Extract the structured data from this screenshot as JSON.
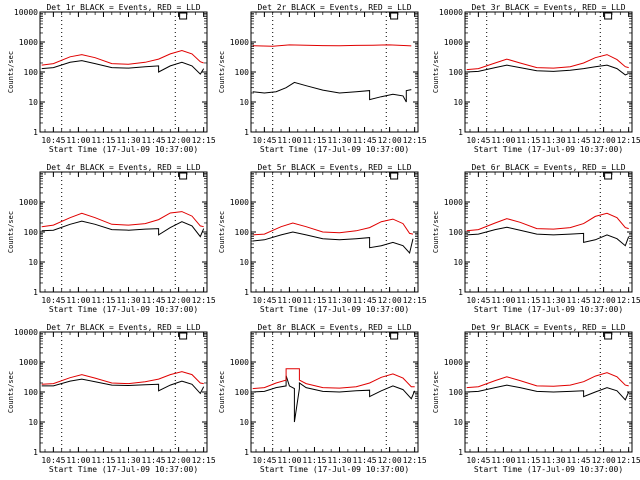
{
  "window": {
    "background": "#ffffff"
  },
  "colors": {
    "events": "#000000",
    "lld": "#e00000",
    "axis": "#000000"
  },
  "chart_data": {
    "type": "line",
    "layout": "3x3 grid",
    "scale": "log-y",
    "ylim": [
      1,
      10000
    ],
    "xlim": [
      "10:37",
      "12:17"
    ],
    "xticks": [
      "10:45",
      "11:00",
      "11:15",
      "11:30",
      "11:45",
      "12:00",
      "12:15"
    ],
    "ylabel": "Counts/sec",
    "xlabel": "Start Time (17-Jul-09 10:37:00)",
    "series_labels": {
      "events": "BLACK = Events",
      "lld": "RED = LLD"
    },
    "markers": {
      "dotted_lines": [
        "10:50",
        "11:58"
      ],
      "box_marker": "12:03"
    },
    "panels": [
      {
        "title": "Det 1r BLACK = Events, RED = LLD",
        "yticks": [
          "1",
          "10",
          "100",
          "1000",
          "10000"
        ],
        "series": [
          {
            "key": "events",
            "x": [
              "10:38",
              "10:45",
              "10:55",
              "11:02",
              "11:10",
              "11:20",
              "11:30",
              "11:40",
              "11:48",
              "11:48",
              "11:55",
              "12:02",
              "12:08",
              "12:13",
              "12:15"
            ],
            "y": [
              130,
              140,
              210,
              240,
              190,
              140,
              135,
              150,
              160,
              100,
              160,
              210,
              160,
              85,
              130
            ]
          },
          {
            "key": "lld",
            "x": [
              "10:38",
              "10:45",
              "10:55",
              "11:02",
              "11:10",
              "11:20",
              "11:30",
              "11:40",
              "11:48",
              "11:55",
              "12:02",
              "12:08",
              "12:13",
              "12:15"
            ],
            "y": [
              170,
              190,
              320,
              380,
              300,
              190,
              180,
              210,
              270,
              400,
              520,
              400,
              220,
              200
            ]
          }
        ]
      },
      {
        "title": "Det 2r BLACK = Events, RED = LLD",
        "yticks": [
          "1",
          "10",
          "100",
          "1000"
        ],
        "series": [
          {
            "key": "events",
            "x": [
              "10:38",
              "10:45",
              "10:52",
              "10:58",
              "11:03",
              "11:10",
              "11:20",
              "11:30",
              "11:40",
              "11:48",
              "11:48",
              "11:55",
              "12:02",
              "12:08",
              "12:10",
              "12:10",
              "12:13"
            ],
            "y": [
              22,
              20,
              22,
              30,
              45,
              35,
              25,
              20,
              22,
              24,
              12,
              15,
              18,
              16,
              10,
              24,
              26
            ]
          },
          {
            "key": "lld",
            "x": [
              "10:38",
              "10:50",
              "11:00",
              "11:10",
              "11:20",
              "11:30",
              "11:40",
              "11:50",
              "12:00",
              "12:10",
              "12:13"
            ],
            "y": [
              750,
              720,
              800,
              780,
              760,
              750,
              770,
              780,
              800,
              760,
              740
            ]
          }
        ]
      },
      {
        "title": "Det 3r BLACK = Events, RED = LLD",
        "yticks": [
          "1",
          "10",
          "100",
          "1000",
          "10000"
        ],
        "series": [
          {
            "key": "events",
            "x": [
              "10:38",
              "10:45",
              "10:55",
              "11:02",
              "11:10",
              "11:20",
              "11:30",
              "11:40",
              "11:48",
              "11:55",
              "12:02",
              "12:08",
              "12:13",
              "12:15"
            ],
            "y": [
              100,
              105,
              140,
              170,
              140,
              110,
              105,
              115,
              130,
              150,
              170,
              130,
              80,
              90
            ]
          },
          {
            "key": "lld",
            "x": [
              "10:38",
              "10:45",
              "10:55",
              "11:02",
              "11:10",
              "11:20",
              "11:30",
              "11:40",
              "11:48",
              "11:55",
              "12:02",
              "12:08",
              "12:13",
              "12:15"
            ],
            "y": [
              120,
              130,
              200,
              270,
              200,
              140,
              135,
              150,
              200,
              300,
              380,
              260,
              150,
              140
            ]
          }
        ]
      },
      {
        "title": "Det 4r BLACK = Events, RED = LLD",
        "yticks": [
          "1",
          "10",
          "100",
          "1000"
        ],
        "series": [
          {
            "key": "events",
            "x": [
              "10:38",
              "10:45",
              "10:55",
              "11:02",
              "11:10",
              "11:20",
              "11:30",
              "11:40",
              "11:48",
              "11:48",
              "11:55",
              "12:02",
              "12:08",
              "12:13",
              "12:15"
            ],
            "y": [
              110,
              115,
              180,
              230,
              180,
              120,
              115,
              125,
              130,
              80,
              140,
              220,
              160,
              70,
              130
            ]
          },
          {
            "key": "lld",
            "x": [
              "10:38",
              "10:45",
              "10:55",
              "11:02",
              "11:10",
              "11:20",
              "11:30",
              "11:40",
              "11:48",
              "11:55",
              "12:02",
              "12:08",
              "12:13",
              "12:15"
            ],
            "y": [
              150,
              170,
              300,
              420,
              300,
              180,
              170,
              190,
              260,
              430,
              480,
              340,
              160,
              150
            ]
          }
        ]
      },
      {
        "title": "Det 5r BLACK = Events, RED = LLD",
        "yticks": [
          "1",
          "10",
          "100",
          "1000"
        ],
        "series": [
          {
            "key": "events",
            "x": [
              "10:38",
              "10:45",
              "10:55",
              "11:02",
              "11:10",
              "11:20",
              "11:30",
              "11:40",
              "11:48",
              "11:48",
              "11:55",
              "12:02",
              "12:08",
              "12:12",
              "12:14"
            ],
            "y": [
              50,
              55,
              80,
              100,
              80,
              60,
              55,
              60,
              65,
              30,
              35,
              45,
              35,
              20,
              60
            ]
          },
          {
            "key": "lld",
            "x": [
              "10:38",
              "10:45",
              "10:55",
              "11:02",
              "11:10",
              "11:20",
              "11:30",
              "11:40",
              "11:48",
              "11:55",
              "12:02",
              "12:08",
              "12:12",
              "12:14"
            ],
            "y": [
              80,
              85,
              150,
              200,
              150,
              100,
              95,
              110,
              140,
              220,
              270,
              190,
              90,
              85
            ]
          }
        ]
      },
      {
        "title": "Det 6r BLACK = Events, RED = LLD",
        "yticks": [
          "1",
          "10",
          "100",
          "1000"
        ],
        "series": [
          {
            "key": "events",
            "x": [
              "10:38",
              "10:45",
              "10:55",
              "11:02",
              "11:10",
              "11:20",
              "11:30",
              "11:40",
              "11:48",
              "11:48",
              "11:55",
              "12:02",
              "12:08",
              "12:13",
              "12:15"
            ],
            "y": [
              80,
              85,
              120,
              145,
              115,
              85,
              80,
              85,
              90,
              45,
              55,
              80,
              60,
              35,
              70
            ]
          },
          {
            "key": "lld",
            "x": [
              "10:38",
              "10:45",
              "10:55",
              "11:02",
              "11:10",
              "11:20",
              "11:30",
              "11:40",
              "11:48",
              "11:55",
              "12:02",
              "12:08",
              "12:13",
              "12:15"
            ],
            "y": [
              110,
              120,
              200,
              280,
              210,
              130,
              125,
              140,
              190,
              330,
              420,
              300,
              140,
              130
            ]
          }
        ]
      },
      {
        "title": "Det 7r BLACK = Events, RED = LLD",
        "yticks": [
          "1",
          "10",
          "100",
          "1000",
          "10000"
        ],
        "series": [
          {
            "key": "events",
            "x": [
              "10:38",
              "10:45",
              "10:55",
              "11:02",
              "11:10",
              "11:20",
              "11:30",
              "11:40",
              "11:48",
              "11:48",
              "11:55",
              "12:02",
              "12:08",
              "12:13",
              "12:15"
            ],
            "y": [
              160,
              160,
              230,
              270,
              220,
              170,
              165,
              175,
              180,
              110,
              170,
              230,
              180,
              90,
              150
            ]
          },
          {
            "key": "lld",
            "x": [
              "10:38",
              "10:45",
              "10:55",
              "11:02",
              "11:10",
              "11:20",
              "11:30",
              "11:40",
              "11:48",
              "11:55",
              "12:02",
              "12:08",
              "12:13",
              "12:15"
            ],
            "y": [
              180,
              190,
              300,
              380,
              290,
              200,
              190,
              220,
              270,
              380,
              480,
              380,
              200,
              190
            ]
          }
        ]
      },
      {
        "title": "Det 8r BLACK = Events, RED = LLD",
        "yticks": [
          "1",
          "10",
          "100",
          "1000"
        ],
        "series": [
          {
            "key": "events",
            "x": [
              "10:38",
              "10:45",
              "10:52",
              "10:58",
              "10:58",
              "11:00",
              "11:03",
              "11:03",
              "11:06",
              "11:06",
              "11:10",
              "11:20",
              "11:30",
              "11:40",
              "11:48",
              "11:48",
              "11:55",
              "12:02",
              "12:08",
              "12:13",
              "12:15"
            ],
            "y": [
              100,
              105,
              140,
              160,
              350,
              160,
              130,
              10,
              130,
              200,
              140,
              105,
              100,
              110,
              115,
              70,
              110,
              160,
              120,
              60,
              110
            ]
          },
          {
            "key": "lld",
            "x": [
              "10:38",
              "10:45",
              "10:52",
              "10:58",
              "10:58",
              "11:06",
              "11:06",
              "11:10",
              "11:20",
              "11:30",
              "11:40",
              "11:48",
              "11:55",
              "12:02",
              "12:08",
              "12:13",
              "12:15"
            ],
            "y": [
              130,
              140,
              200,
              250,
              600,
              600,
              250,
              190,
              140,
              135,
              150,
              200,
              310,
              400,
              290,
              150,
              150
            ]
          }
        ]
      },
      {
        "title": "Det 9r BLACK = Events, RED = LLD",
        "yticks": [
          "1",
          "10",
          "100",
          "1000"
        ],
        "series": [
          {
            "key": "events",
            "x": [
              "10:38",
              "10:45",
              "10:55",
              "11:02",
              "11:10",
              "11:20",
              "11:30",
              "11:40",
              "11:48",
              "11:48",
              "11:55",
              "12:02",
              "12:08",
              "12:13",
              "12:15"
            ],
            "y": [
              100,
              105,
              140,
              170,
              140,
              105,
              100,
              105,
              110,
              70,
              100,
              140,
              110,
              55,
              100
            ]
          },
          {
            "key": "lld",
            "x": [
              "10:38",
              "10:45",
              "10:55",
              "11:02",
              "11:10",
              "11:20",
              "11:30",
              "11:40",
              "11:48",
              "11:55",
              "12:02",
              "12:08",
              "12:13",
              "12:15"
            ],
            "y": [
              140,
              150,
              240,
              320,
              240,
              160,
              155,
              170,
              220,
              340,
              440,
              320,
              170,
              160
            ]
          }
        ]
      }
    ]
  }
}
